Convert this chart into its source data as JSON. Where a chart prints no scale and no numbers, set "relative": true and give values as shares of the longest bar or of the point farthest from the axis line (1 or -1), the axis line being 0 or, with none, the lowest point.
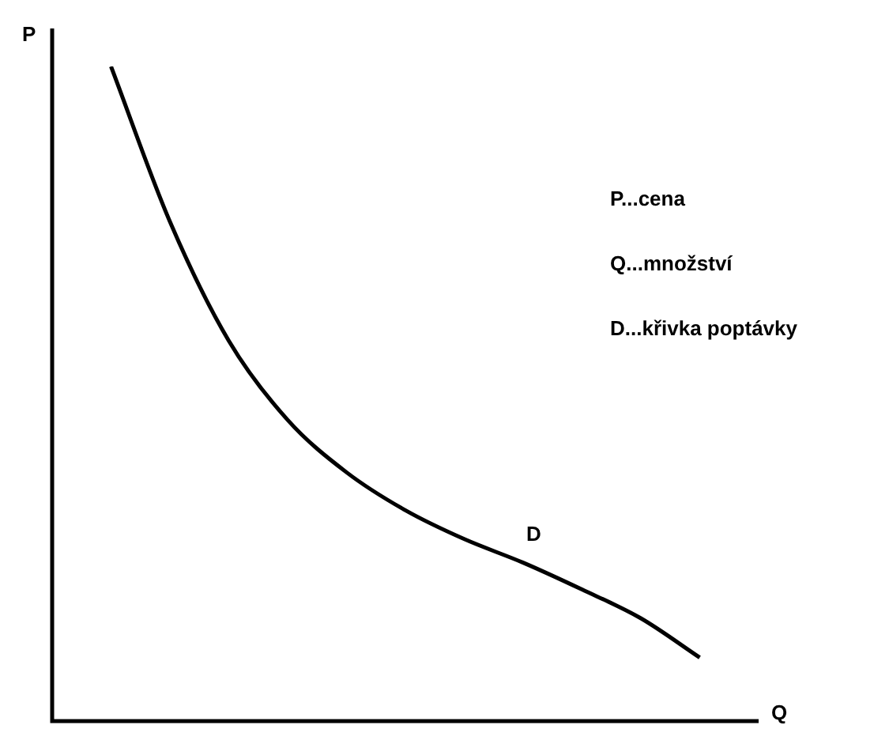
{
  "chart_data": {
    "type": "line",
    "relative": true,
    "xlabel": "Q",
    "ylabel": "P",
    "legend": false,
    "marker": "none",
    "line_style": "solid",
    "categories": [
      null,
      null,
      null,
      null,
      null,
      null,
      null,
      null,
      null,
      null,
      null,
      null,
      null
    ],
    "series": [
      {
        "name": "D",
        "color": "#000000",
        "values": [
          null,
          1,
          0.763,
          0.581,
          0.46,
          0.38,
          0.322,
          0.278,
          0.242,
          0.201,
          0.157,
          0.097,
          null
        ]
      }
    ],
    "annotations": [
      "P...cena",
      "Q...množství",
      "D...křivka poptávky"
    ]
  }
}
